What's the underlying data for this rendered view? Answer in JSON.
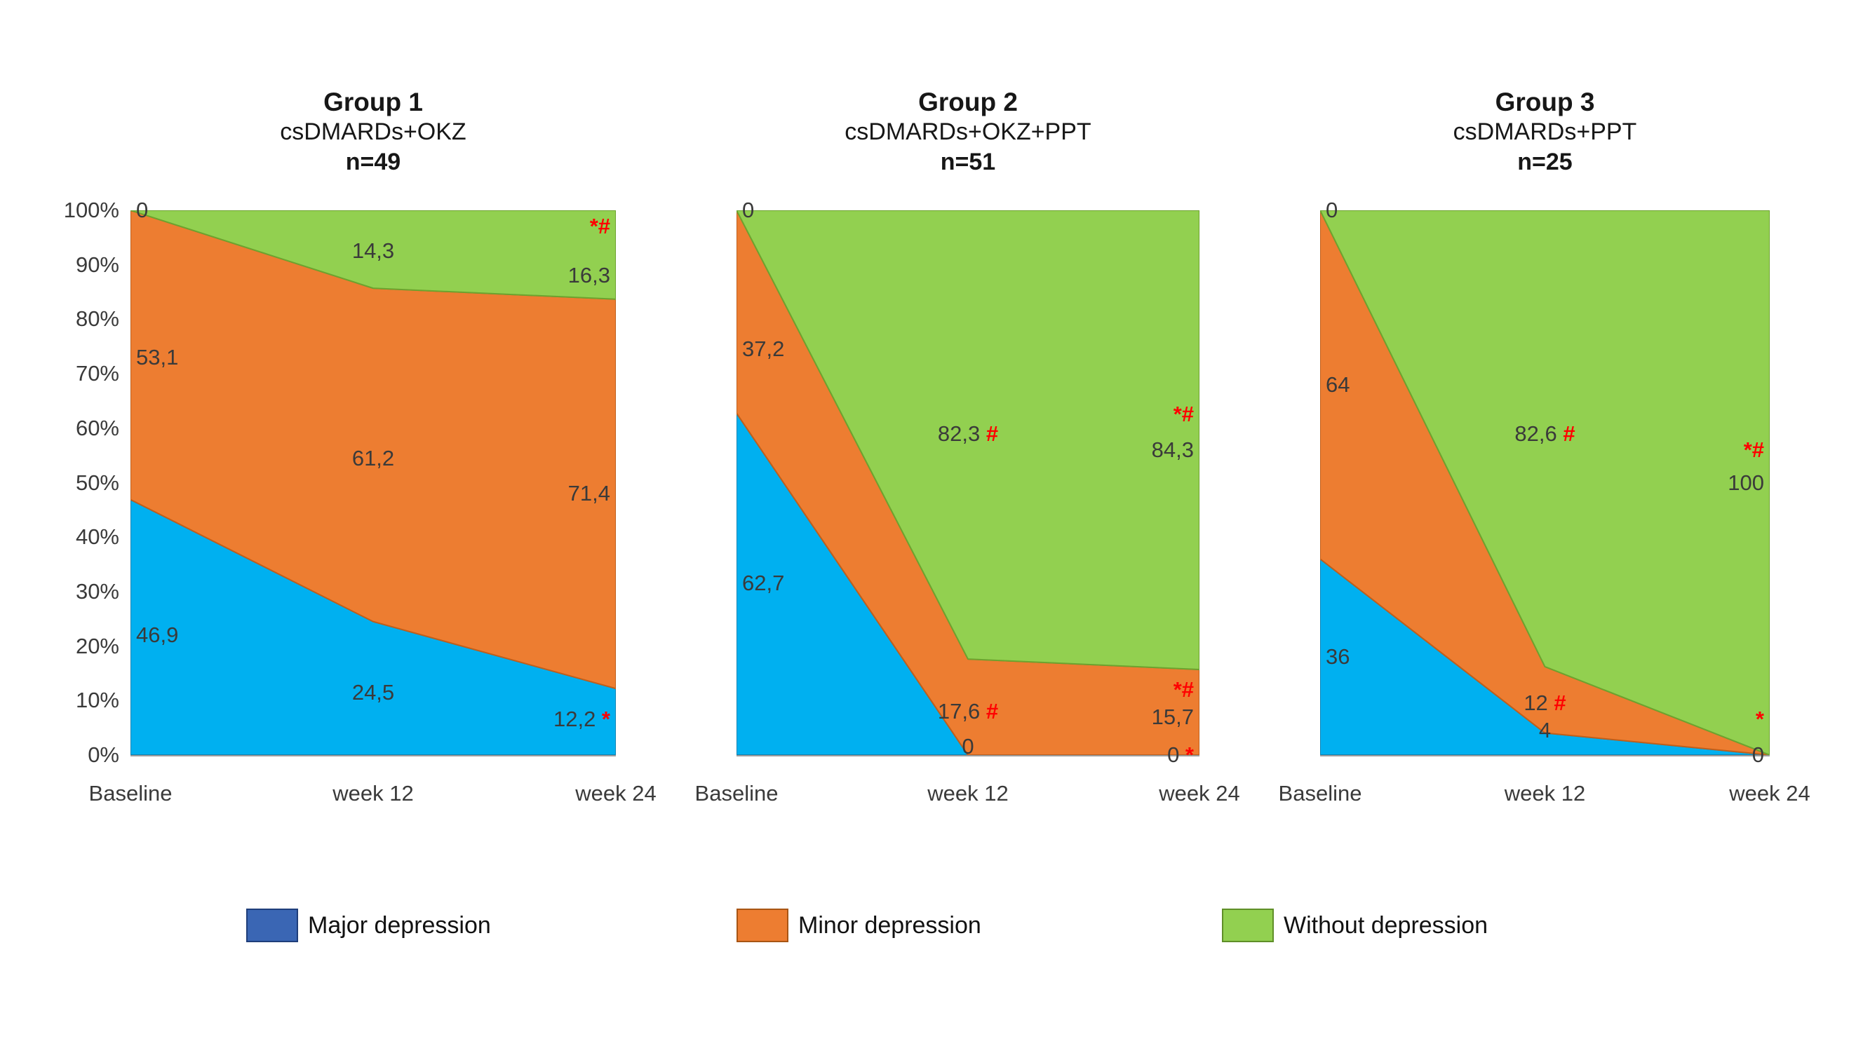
{
  "page": {
    "background": "#FFFFFF"
  },
  "chart_data": {
    "type": "area",
    "subtype": "100% stacked area",
    "x_categories": [
      "Baseline",
      "week 12",
      "week 24"
    ],
    "y_ticks": [
      "100%",
      "90%",
      "80%",
      "70%",
      "60%",
      "50%",
      "40%",
      "30%",
      "20%",
      "10%",
      "0%"
    ],
    "y_range": [
      0,
      100
    ],
    "grid": false,
    "legend_position": "bottom",
    "series_meta": [
      {
        "name": "Major depression",
        "color": "#00B0F0",
        "stroke": "#0B84B5"
      },
      {
        "name": "Minor depression",
        "color": "#ED7D31",
        "stroke": "#C05F1B"
      },
      {
        "name": "Without depression",
        "color": "#92D050",
        "stroke": "#6DA32F"
      }
    ],
    "groups": [
      {
        "t1": "Group 1",
        "t2": "csDMARDs+OKZ",
        "t3": "n=49",
        "series": {
          "major": [
            46.9,
            24.5,
            12.2
          ],
          "minor": [
            53.1,
            61.2,
            71.4
          ],
          "without": [
            0,
            14.3,
            16.3
          ]
        },
        "labels": [
          {
            "p": 0,
            "v": 100,
            "t": "0"
          },
          {
            "p": 0,
            "v": 73,
            "t": "53,1"
          },
          {
            "p": 0,
            "v": 22,
            "t": "46,9"
          },
          {
            "p": 1,
            "v": 92.5,
            "t": "14,3"
          },
          {
            "p": 1,
            "v": 54.5,
            "t": "61,2"
          },
          {
            "p": 1,
            "v": 11.5,
            "t": "24,5"
          },
          {
            "p": 2,
            "v": 97,
            "r": "*#"
          },
          {
            "p": 2,
            "v": 88,
            "t": "16,3"
          },
          {
            "p": 2,
            "v": 48,
            "t": "71,4"
          },
          {
            "p": 2,
            "v": 6.5,
            "t": "12,2 ",
            "r": "*"
          }
        ]
      },
      {
        "t1": "Group 2",
        "t2": "csDMARDs+OKZ+PPT",
        "t3": "n=51",
        "series": {
          "major": [
            62.7,
            0,
            0
          ],
          "minor": [
            37.2,
            17.6,
            15.7
          ],
          "without": [
            0,
            82.3,
            84.3
          ]
        },
        "labels": [
          {
            "p": 0,
            "v": 100,
            "t": "0"
          },
          {
            "p": 0,
            "v": 74.5,
            "t": "37,2"
          },
          {
            "p": 0,
            "v": 31.5,
            "t": "62,7"
          },
          {
            "p": 1,
            "v": 59,
            "t": "82,3 ",
            "r": "#"
          },
          {
            "p": 1,
            "v": 8,
            "t": "17,6 ",
            "r": "#"
          },
          {
            "p": 1,
            "v": 1.5,
            "t": "0"
          },
          {
            "p": 2,
            "v": 62.5,
            "r": "*#"
          },
          {
            "p": 2,
            "v": 56,
            "t": "84,3"
          },
          {
            "p": 2,
            "v": 12,
            "r": "*#"
          },
          {
            "p": 2,
            "v": 7,
            "t": "15,7"
          },
          {
            "p": 2,
            "v": 0,
            "t": "0 ",
            "r": "*"
          }
        ]
      },
      {
        "t1": "Group 3",
        "t2": "csDMARDs+PPT",
        "t3": "n=25",
        "series": {
          "major": [
            36,
            4,
            0
          ],
          "minor": [
            64,
            12,
            0
          ],
          "without": [
            0,
            82.6,
            100
          ]
        },
        "labels": [
          {
            "p": 0,
            "v": 100,
            "t": "0"
          },
          {
            "p": 0,
            "v": 68,
            "t": "64"
          },
          {
            "p": 0,
            "v": 18,
            "t": "36"
          },
          {
            "p": 1,
            "v": 59,
            "t": "82,6 ",
            "r": "#"
          },
          {
            "p": 1,
            "v": 9.5,
            "t": "12 ",
            "r": "#"
          },
          {
            "p": 1,
            "v": 4.5,
            "t": "4"
          },
          {
            "p": 2,
            "v": 56,
            "r": "*#"
          },
          {
            "p": 2,
            "v": 50,
            "t": "100"
          },
          {
            "p": 2,
            "v": 6.5,
            "r": "*"
          },
          {
            "p": 2,
            "v": 0,
            "t": "0"
          }
        ]
      }
    ]
  },
  "legend": {
    "items": [
      {
        "label": "Major depression",
        "color": "#3A66B4",
        "border": "#1F3E7A"
      },
      {
        "label": "Minor depression",
        "color": "#ED7D31",
        "border": "#A85514"
      },
      {
        "label": "Without depression",
        "color": "#92D050",
        "border": "#5F8F28"
      }
    ]
  }
}
